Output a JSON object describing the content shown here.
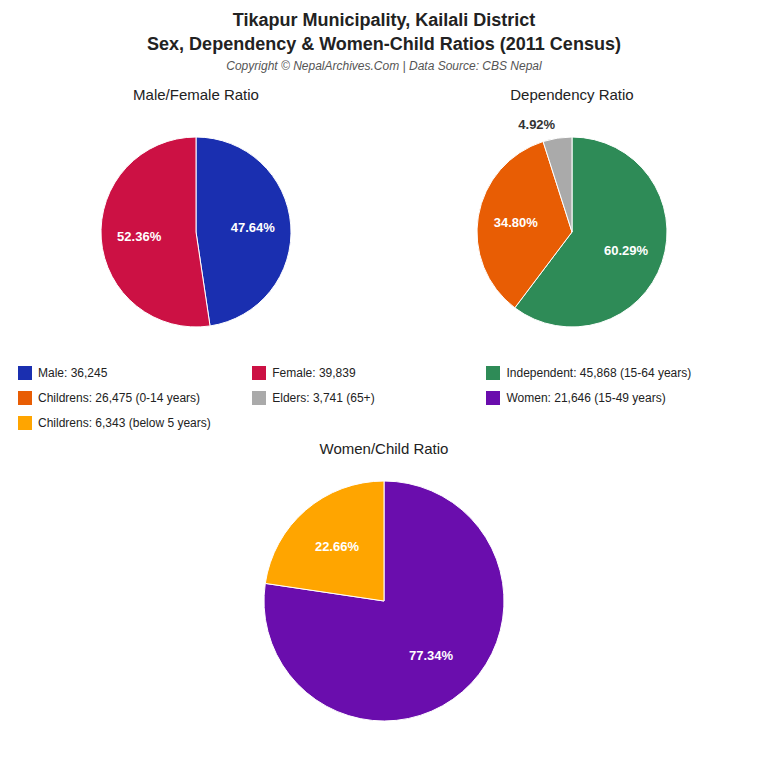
{
  "title": "Tikapur Municipality, Kailali District",
  "subtitle": "Sex, Dependency & Women-Child Ratios (2011 Census)",
  "annotations": [
    "Copyright © NepalArchives.Com | Data Source: CBS Nepal"
  ],
  "chart_data": [
    {
      "type": "pie",
      "title": "Male/Female Ratio",
      "categories": [
        "Male: 36,245",
        "Female: 39,839"
      ],
      "values": [
        47.64,
        52.36
      ],
      "value_labels": [
        "47.64%",
        "52.36%"
      ],
      "colors": [
        "#1a2fb0",
        "#cc1144"
      ],
      "data_labels": true,
      "legend": "center"
    },
    {
      "type": "pie",
      "title": "Dependency Ratio",
      "categories": [
        "Independent: 45,868 (15-64 years)",
        "Childrens: 26,475 (0-14 years)",
        "Elders: 3,741 (65+)"
      ],
      "values": [
        60.29,
        34.8,
        4.92
      ],
      "value_labels": [
        "60.29%",
        "34.80%",
        "4.92%"
      ],
      "colors": [
        "#2e8b57",
        "#e85d04",
        "#aaaaaa"
      ],
      "data_labels": true,
      "legend": "center"
    },
    {
      "type": "pie",
      "title": "Women/Child Ratio",
      "categories": [
        "Women: 21,646 (15-49 years)",
        "Childrens: 6,343 (below 5 years)"
      ],
      "values": [
        77.34,
        22.66
      ],
      "value_labels": [
        "77.34%",
        "22.66%"
      ],
      "colors": [
        "#6a0dad",
        "#ffa500"
      ],
      "data_labels": true,
      "legend": "center"
    }
  ]
}
